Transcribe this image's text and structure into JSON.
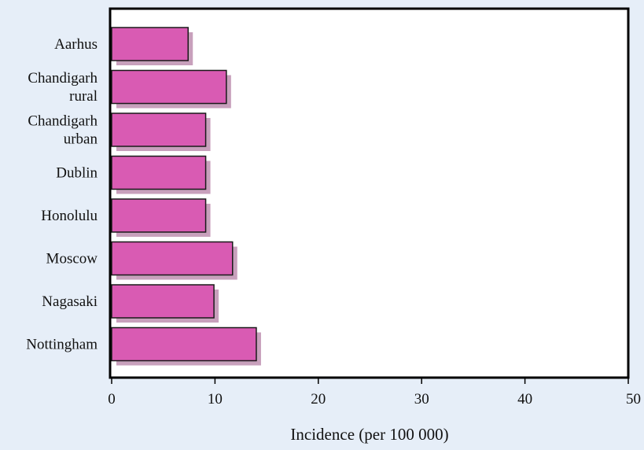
{
  "chart_data": {
    "type": "bar",
    "orientation": "horizontal",
    "categories": [
      [
        "Aarhus"
      ],
      [
        "Chandigarh",
        "rural"
      ],
      [
        "Chandigarh",
        "urban"
      ],
      [
        "Dublin"
      ],
      [
        "Honolulu"
      ],
      [
        "Moscow"
      ],
      [
        "Nagasaki"
      ],
      [
        "Nottingham"
      ]
    ],
    "values": [
      7.4,
      11.1,
      9.1,
      9.1,
      9.1,
      11.7,
      9.9,
      14.0
    ],
    "xlabel": "Incidence (per 100  000)",
    "xlim": [
      0,
      50
    ],
    "xticks": [
      0,
      10,
      20,
      30,
      40,
      50
    ],
    "grid": false,
    "legend": "none",
    "colors": {
      "background": "#e6eef8",
      "plot_area": "#ffffff",
      "bar": "#d95bb3",
      "bar_shadow": "#c8a0bc",
      "bar_stroke": "#1a1a1a",
      "frame": "#000000"
    }
  }
}
